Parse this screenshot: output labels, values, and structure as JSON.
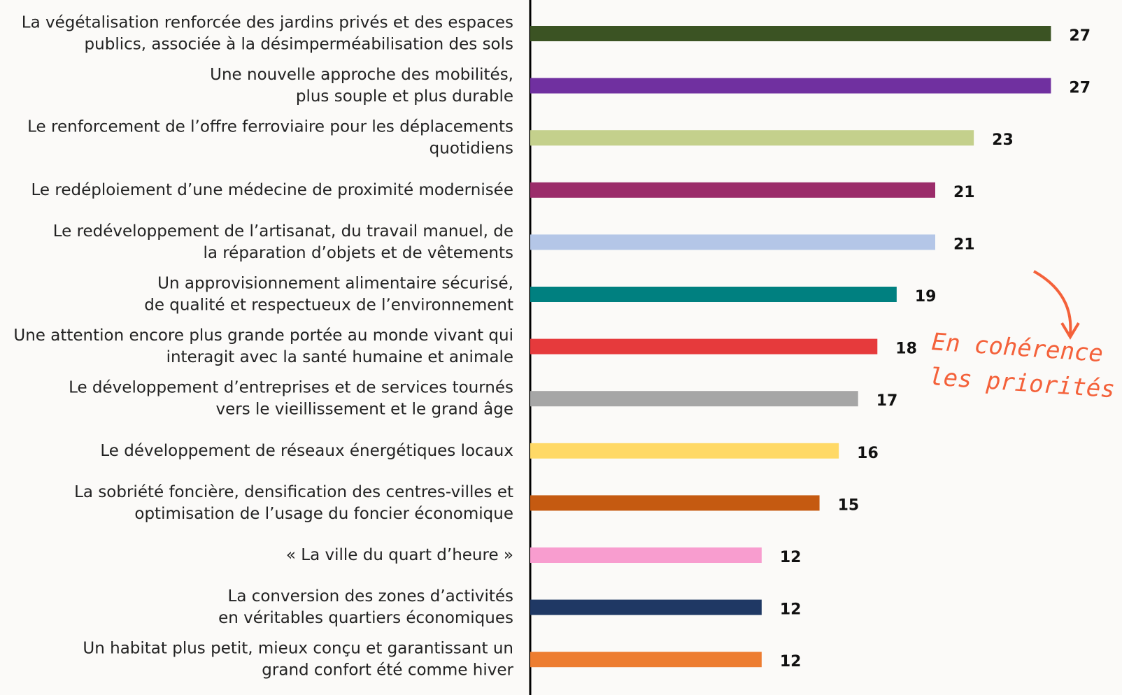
{
  "chart_data": {
    "type": "barh",
    "categories": [
      "La végétalisation renforcée des jardins privés et des espaces\npublics, associée à la désimperméabilisation des sols",
      "Une nouvelle approche des mobilités,\nplus souple et plus durable",
      "Le renforcement de l’offre ferroviaire pour les déplacements\nquotidiens",
      "Le redéploiement d’une médecine de proximité modernisée",
      "Le redéveloppement de l’artisanat, du travail manuel, de\nla réparation d’objets et de vêtements",
      "Un approvisionnement alimentaire sécurisé,\nde qualité et respectueux de l’environnement",
      "Une attention encore plus grande portée au monde vivant qui\ninteragit avec la santé humaine et animale",
      "Le développement d’entreprises et de services tournés\nvers le vieillissement et le grand âge",
      "Le développement de réseaux énergétiques locaux",
      "La sobriété foncière, densification des centres-villes et\noptimisation de l’usage du foncier économique",
      "« La ville du quart d’heure »",
      "La conversion des zones d’activités\nen véritables quartiers économiques",
      "Un habitat plus petit, mieux conçu et garantissant un\ngrand confort été comme hiver"
    ],
    "values": [
      27,
      27,
      23,
      21,
      21,
      19,
      18,
      17,
      16,
      15,
      12,
      12,
      12
    ],
    "colors": [
      "#3b5323",
      "#7030a0",
      "#c4d08c",
      "#9b2c6a",
      "#b4c6e7",
      "#008080",
      "#e63a3c",
      "#a6a6a6",
      "#ffd966",
      "#c55a11",
      "#f89dcf",
      "#1f3864",
      "#ed7d31"
    ],
    "xlim": [
      0,
      28
    ],
    "annotation": "En cohérence\nles priorités"
  }
}
